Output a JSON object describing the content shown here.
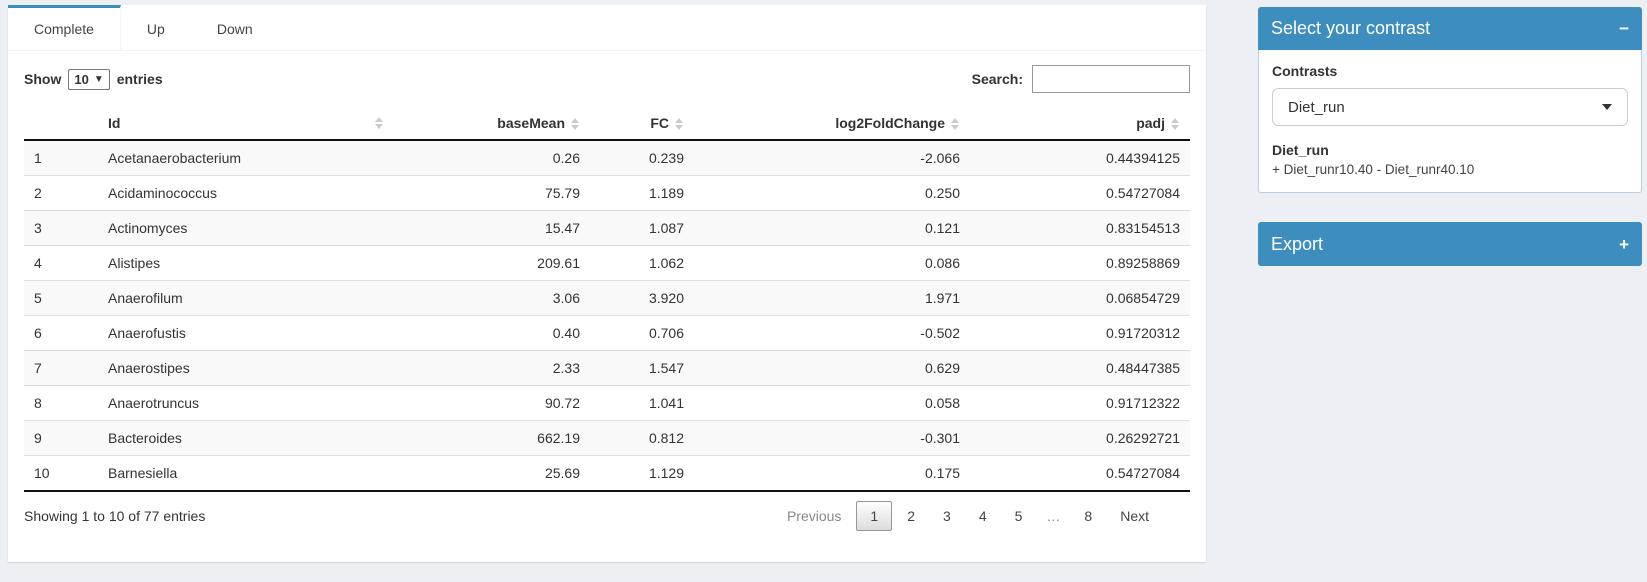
{
  "tabs": [
    {
      "label": "Complete",
      "active": true
    },
    {
      "label": "Up",
      "active": false
    },
    {
      "label": "Down",
      "active": false
    }
  ],
  "table_controls": {
    "show_label": "Show",
    "length_value": "10",
    "entries_label": "entries",
    "search_label": "Search:",
    "search_value": ""
  },
  "table": {
    "columns": [
      "",
      "Id",
      "baseMean",
      "FC",
      "log2FoldChange",
      "padj"
    ],
    "rows": [
      {
        "num": "1",
        "id": "Acetanaerobacterium",
        "baseMean": "0.26",
        "fc": "0.239",
        "log2fc": "-2.066",
        "padj": "0.44394125"
      },
      {
        "num": "2",
        "id": "Acidaminococcus",
        "baseMean": "75.79",
        "fc": "1.189",
        "log2fc": "0.250",
        "padj": "0.54727084"
      },
      {
        "num": "3",
        "id": "Actinomyces",
        "baseMean": "15.47",
        "fc": "1.087",
        "log2fc": "0.121",
        "padj": "0.83154513"
      },
      {
        "num": "4",
        "id": "Alistipes",
        "baseMean": "209.61",
        "fc": "1.062",
        "log2fc": "0.086",
        "padj": "0.89258869"
      },
      {
        "num": "5",
        "id": "Anaerofilum",
        "baseMean": "3.06",
        "fc": "3.920",
        "log2fc": "1.971",
        "padj": "0.06854729"
      },
      {
        "num": "6",
        "id": "Anaerofustis",
        "baseMean": "0.40",
        "fc": "0.706",
        "log2fc": "-0.502",
        "padj": "0.91720312"
      },
      {
        "num": "7",
        "id": "Anaerostipes",
        "baseMean": "2.33",
        "fc": "1.547",
        "log2fc": "0.629",
        "padj": "0.48447385"
      },
      {
        "num": "8",
        "id": "Anaerotruncus",
        "baseMean": "90.72",
        "fc": "1.041",
        "log2fc": "0.058",
        "padj": "0.91712322"
      },
      {
        "num": "9",
        "id": "Bacteroides",
        "baseMean": "662.19",
        "fc": "0.812",
        "log2fc": "-0.301",
        "padj": "0.26292721"
      },
      {
        "num": "10",
        "id": "Barnesiella",
        "baseMean": "25.69",
        "fc": "1.129",
        "log2fc": "0.175",
        "padj": "0.54727084"
      }
    ]
  },
  "footer": {
    "info": "Showing 1 to 10 of 77 entries",
    "pagination": {
      "previous": "Previous",
      "pages": [
        "1",
        "2",
        "3",
        "4",
        "5",
        "…",
        "8"
      ],
      "current": "1",
      "next": "Next"
    }
  },
  "contrast_box": {
    "title": "Select your contrast",
    "collapse_icon": "−",
    "contrasts_label": "Contrasts",
    "selected_contrast": "Diet_run",
    "contrast_name": "Diet_run",
    "contrast_formula": "+ Diet_runr10.40 - Diet_runr40.10"
  },
  "export_box": {
    "title": "Export",
    "expand_icon": "+"
  },
  "colors": {
    "accent": "#3d8ebe",
    "page_bg": "#ecf0f5"
  }
}
